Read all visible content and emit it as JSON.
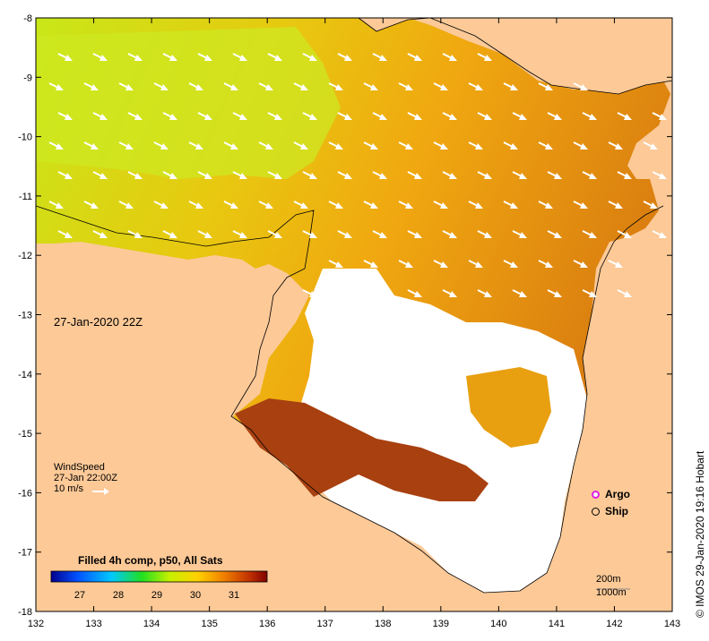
{
  "map": {
    "timestamp": "27-Jan-2020 22Z",
    "x_ticks": [
      "132",
      "133",
      "134",
      "135",
      "136",
      "137",
      "138",
      "139",
      "140",
      "141",
      "142",
      "143"
    ],
    "y_ticks": [
      "-8",
      "-9",
      "-10",
      "-11",
      "-12",
      "-13",
      "-14",
      "-15",
      "-16",
      "-17",
      "-18"
    ],
    "colors": {
      "land": "#fcc997",
      "no_data": "#ffffff",
      "warm_sst": "#e8a010",
      "hot_sst": "#a84010",
      "cool_sst": "#c8e810"
    }
  },
  "wind_legend": {
    "title": "WindSpeed",
    "time": "27-Jan 22:00Z",
    "scale": "10 m/s"
  },
  "markers": {
    "argo": {
      "label": "Argo",
      "color": "#e020e0"
    },
    "ship": {
      "label": "Ship",
      "color": "#000000"
    }
  },
  "scale": {
    "contour_1": "200m",
    "contour_2": "1000m"
  },
  "colorbar": {
    "title": "Filled 4h comp, p50, All Sats",
    "tick_labels": [
      "27",
      "28",
      "29",
      "30",
      "31"
    ]
  },
  "credit": "© IMOS 29-Jan-2020 19:16 Hobart"
}
